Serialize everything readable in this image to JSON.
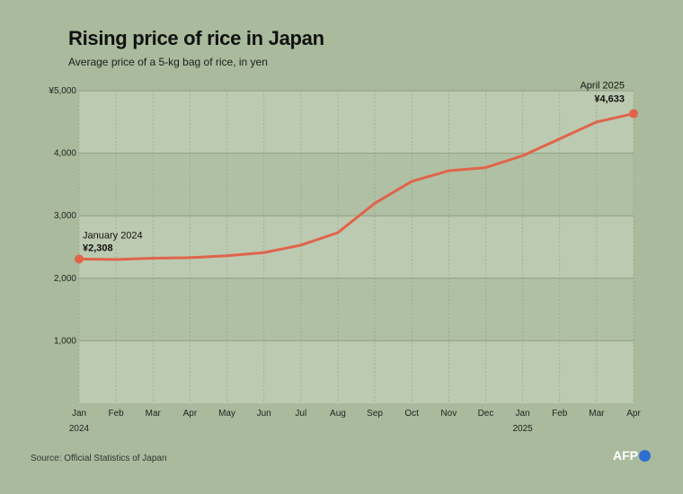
{
  "header": {
    "title": "Rising price of rice in Japan",
    "subtitle": "Average price of a 5-kg bag of rice, in yen"
  },
  "footer": {
    "source": "Source: Official Statistics of Japan",
    "logo_text": "AFP"
  },
  "colors": {
    "background": "#a9bb9c",
    "plot_band_light": "#bccab1",
    "plot_band_dark": "#b0c0a4",
    "line": "#e0644a",
    "gridline": "#8e9f83"
  },
  "chart_data": {
    "type": "line",
    "title": "Rising price of rice in Japan",
    "subtitle": "Average price of a 5-kg bag of rice, in yen",
    "x": [
      "Jan 2024",
      "Feb 2024",
      "Mar 2024",
      "Apr 2024",
      "May 2024",
      "Jun 2024",
      "Jul 2024",
      "Aug 2024",
      "Sep 2024",
      "Oct 2024",
      "Nov 2024",
      "Dec 2024",
      "Jan 2025",
      "Feb 2025",
      "Mar 2025",
      "Apr 2025"
    ],
    "x_tick_labels": [
      "Jan",
      "Feb",
      "Mar",
      "Apr",
      "May",
      "Jun",
      "Jul",
      "Aug",
      "Sep",
      "Oct",
      "Nov",
      "Dec",
      "Jan",
      "Feb",
      "Mar",
      "Apr"
    ],
    "year_labels": [
      {
        "index": 0,
        "label": "2024"
      },
      {
        "index": 12,
        "label": "2025"
      }
    ],
    "series": [
      {
        "values": [
          2308,
          2300,
          2320,
          2330,
          2360,
          2410,
          2530,
          2730,
          3200,
          3550,
          3720,
          3770,
          3960,
          4230,
          4500,
          4633
        ]
      }
    ],
    "ylim": [
      0,
      5000
    ],
    "y_ticks": [
      1000,
      2000,
      3000,
      4000,
      5000
    ],
    "y_tick_labels": [
      "1,000",
      "2,000",
      "3,000",
      "4,000",
      "¥5,000"
    ],
    "grid": true,
    "annotations": [
      {
        "index": 0,
        "label": "January 2024",
        "value_label": "¥2,308"
      },
      {
        "index": 15,
        "label": "April 2025",
        "value_label": "¥4,633"
      }
    ]
  }
}
